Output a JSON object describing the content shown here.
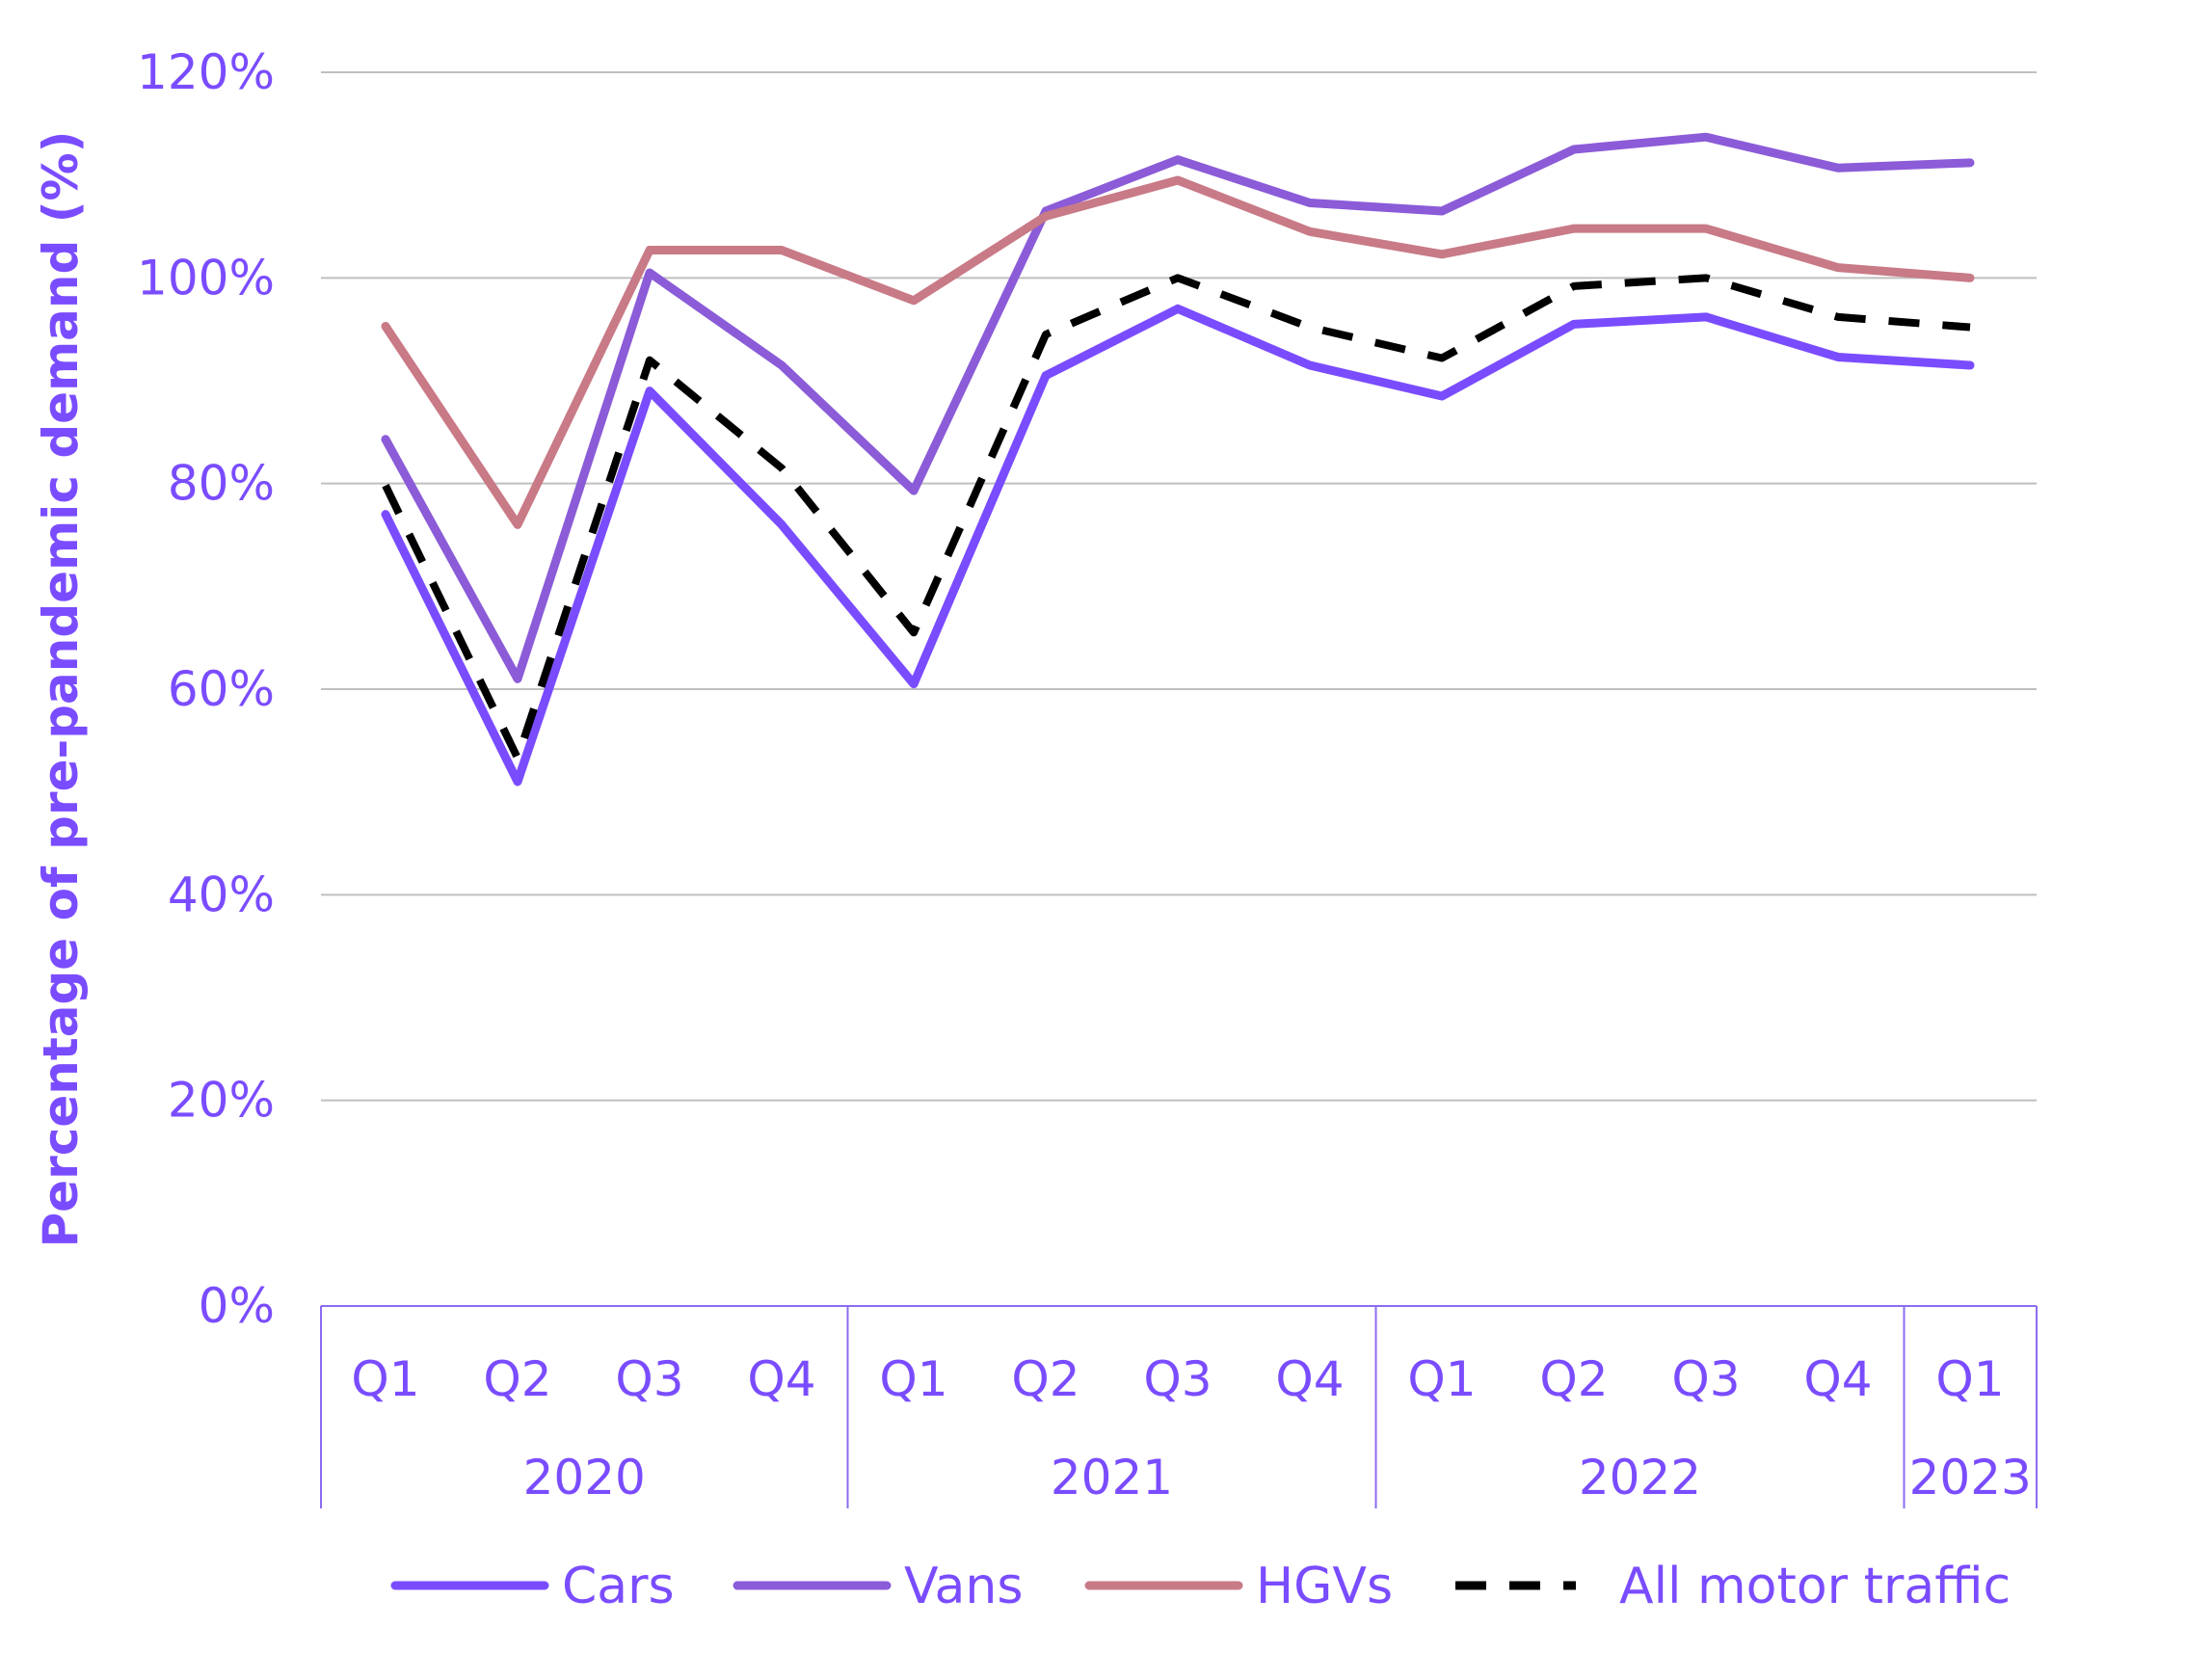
{
  "chart_data": {
    "type": "line",
    "title": "",
    "ylabel": "Percentage of pre-pandemic demand (%)",
    "xlabel": "",
    "ylim": [
      0,
      120
    ],
    "y_ticks": [
      0,
      20,
      40,
      60,
      80,
      100,
      120
    ],
    "y_tick_suffix": "%",
    "grid": true,
    "legend_position": "bottom",
    "categories": [
      "Q1",
      "Q2",
      "Q3",
      "Q4",
      "Q1",
      "Q2",
      "Q3",
      "Q4",
      "Q1",
      "Q2",
      "Q3",
      "Q4",
      "Q1"
    ],
    "year_groups": [
      {
        "label": "2020",
        "count": 4
      },
      {
        "label": "2021",
        "count": 4
      },
      {
        "label": "2022",
        "count": 4
      },
      {
        "label": "2023",
        "count": 1
      }
    ],
    "series": [
      {
        "name": "Cars",
        "color": "#7a4cff",
        "dashed": false,
        "values": [
          77,
          51,
          89,
          76,
          60.5,
          90.5,
          97,
          91.5,
          88.5,
          95.5,
          96.2,
          92.3,
          91.5
        ]
      },
      {
        "name": "Vans",
        "color": "#8b5bd8",
        "dashed": false,
        "values": [
          84.3,
          61,
          100.5,
          91.5,
          79.3,
          106.5,
          111.5,
          107.3,
          106.5,
          112.5,
          113.7,
          110.7,
          111.2
        ]
      },
      {
        "name": "HGVs",
        "color": "#c87a86",
        "dashed": false,
        "values": [
          95.3,
          76,
          102.7,
          102.7,
          97.8,
          106,
          109.5,
          104.5,
          102.3,
          104.8,
          104.8,
          101,
          100
        ]
      },
      {
        "name": "All motor traffic",
        "color": "#000000",
        "dashed": true,
        "values": [
          79.8,
          53.3,
          92,
          81.5,
          65.5,
          94.5,
          100,
          95.2,
          92.2,
          99.2,
          100,
          96.2,
          95.2
        ]
      }
    ],
    "colors": {
      "axis_text": "#7a4cff",
      "gridline": "#bfbfbf",
      "category_box": "#8c6cf0"
    }
  }
}
